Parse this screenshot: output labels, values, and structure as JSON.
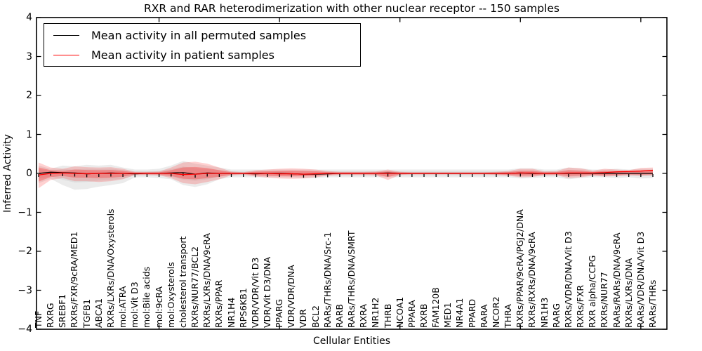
{
  "figure": {
    "title": "RXR and RAR heterodimerization with other nuclear receptor -- 150 samples",
    "x_axis_label": "Cellular Entities",
    "y_axis_label": "Inferred Activity",
    "legend": [
      {
        "label": "Mean activity in all permuted samples",
        "color": "#000000"
      },
      {
        "label": "Mean activity in patient samples",
        "color": "#ff0000"
      }
    ]
  },
  "chart_data": {
    "type": "line",
    "title": "RXR and RAR heterodimerization with other nuclear receptor -- 150 samples",
    "xlabel": "Cellular Entities",
    "ylabel": "Inferred Activity",
    "ylim": [
      -4,
      4
    ],
    "yticks": [
      -4,
      -3,
      -2,
      -1,
      0,
      1,
      2,
      3,
      4
    ],
    "grid": false,
    "legend_position": "upper left",
    "categories": [
      "TNF",
      "RXRG",
      "SREBF1",
      "RXRs/FXR/9cRA/MED1",
      "TGFB1",
      "ABCA1",
      "RXRs/LXRs/DNA/Oxysterols",
      "mol:ATRA",
      "mol:Vit D3",
      "mol:Bile acids",
      "mol:9cRA",
      "mol:Oxysterols",
      "cholesterol transport",
      "RXRs/NUR77/BCL2",
      "RXRs/LXRs/DNA/9cRA",
      "RXRs/PPAR",
      "NR1H4",
      "RPS6KB1",
      "VDR/VDR/Vit D3",
      "VDR/Vit D3/DNA",
      "PPARG",
      "VDR/VDR/DNA",
      "VDR",
      "BCL2",
      "RARs/THRs/DNA/Src-1",
      "RARB",
      "RARs/THRs/DNA/SMRT",
      "RXRA",
      "NR1H2",
      "THRB",
      "NCOA1",
      "PPARA",
      "RXRB",
      "FAM120B",
      "MED1",
      "NR4A1",
      "PPARD",
      "RARA",
      "NCOR2",
      "THRA",
      "RXRs/PPAR/9cRA/PGJ2/DNA",
      "RXRs/RXRs/DNA/9cRA",
      "NR1H3",
      "RARG",
      "RXRs/VDR/DNA/Vit D3",
      "RXRs/FXR",
      "RXR alpha/CCPG",
      "RXRs/NUR77",
      "RARs/RARs/DNA/9cRA",
      "RXRs/LXRs/DNA",
      "RARs/VDR/DNA/Vit D3",
      "RARs/THRs"
    ],
    "series": [
      {
        "name": "Mean activity in all permuted samples",
        "color": "#000000",
        "values": [
          0.0,
          0.03,
          0.02,
          0.01,
          -0.01,
          0.0,
          0.01,
          0.0,
          -0.01,
          0.0,
          0.0,
          0.01,
          0.02,
          -0.02,
          0.01,
          0.0,
          0.0,
          0.0,
          -0.01,
          0.0,
          0.0,
          -0.01,
          -0.02,
          -0.02,
          -0.01,
          0.0,
          0.0,
          0.0,
          0.0,
          0.01,
          0.0,
          0.0,
          0.0,
          0.0,
          0.0,
          0.0,
          0.0,
          0.0,
          0.0,
          0.0,
          0.01,
          0.0,
          0.0,
          0.0,
          0.0,
          0.0,
          0.0,
          0.0,
          0.0,
          0.0,
          0.0,
          0.0
        ]
      },
      {
        "name": "Mean activity in patient samples",
        "color": "#ff0000",
        "values": [
          -0.04,
          0.0,
          0.01,
          0.0,
          -0.01,
          0.0,
          0.0,
          0.0,
          0.0,
          0.0,
          0.0,
          0.0,
          -0.03,
          -0.02,
          0.0,
          0.0,
          0.0,
          0.0,
          0.0,
          0.0,
          -0.01,
          -0.01,
          -0.02,
          -0.01,
          0.0,
          0.0,
          0.0,
          0.0,
          0.0,
          0.0,
          0.0,
          0.0,
          0.0,
          0.0,
          0.0,
          0.0,
          0.0,
          0.0,
          0.0,
          0.0,
          0.01,
          0.01,
          0.0,
          0.0,
          0.01,
          0.01,
          0.01,
          0.02,
          0.04,
          0.05,
          0.06,
          0.08
        ]
      }
    ],
    "bands": [
      {
        "name": "permuted-samples-spread",
        "color": "#999999",
        "upper": [
          0.2,
          0.12,
          0.2,
          0.18,
          0.22,
          0.2,
          0.22,
          0.15,
          0.1,
          0.1,
          0.12,
          0.2,
          0.32,
          0.25,
          0.2,
          0.15,
          0.1,
          0.1,
          0.1,
          0.1,
          0.1,
          0.1,
          0.1,
          0.1,
          0.1,
          0.1,
          0.1,
          0.1,
          0.1,
          0.1,
          0.1,
          0.1,
          0.1,
          0.1,
          0.1,
          0.1,
          0.1,
          0.1,
          0.1,
          0.1,
          0.13,
          0.13,
          0.1,
          0.1,
          0.15,
          0.13,
          0.1,
          0.1,
          0.12,
          0.1,
          0.12,
          0.12
        ],
        "lower": [
          -0.25,
          -0.14,
          -0.3,
          -0.42,
          -0.4,
          -0.34,
          -0.3,
          -0.25,
          -0.1,
          -0.1,
          -0.12,
          -0.15,
          -0.3,
          -0.35,
          -0.28,
          -0.15,
          -0.1,
          -0.1,
          -0.1,
          -0.1,
          -0.1,
          -0.1,
          -0.12,
          -0.12,
          -0.1,
          -0.1,
          -0.1,
          -0.1,
          -0.1,
          -0.1,
          -0.1,
          -0.1,
          -0.1,
          -0.1,
          -0.1,
          -0.1,
          -0.1,
          -0.1,
          -0.1,
          -0.1,
          -0.13,
          -0.12,
          -0.1,
          -0.1,
          -0.15,
          -0.12,
          -0.1,
          -0.1,
          -0.12,
          -0.1,
          -0.13,
          -0.12
        ]
      },
      {
        "name": "patient-samples-spread",
        "color": "#ff0000",
        "upper": [
          0.28,
          0.15,
          0.12,
          0.18,
          0.16,
          0.15,
          0.16,
          0.12,
          0.04,
          0.04,
          0.05,
          0.15,
          0.28,
          0.3,
          0.25,
          0.15,
          0.05,
          0.03,
          0.08,
          0.1,
          0.12,
          0.13,
          0.12,
          0.1,
          0.06,
          0.04,
          0.04,
          0.04,
          0.05,
          0.1,
          0.04,
          0.03,
          0.03,
          0.03,
          0.03,
          0.03,
          0.03,
          0.03,
          0.04,
          0.06,
          0.12,
          0.12,
          0.05,
          0.06,
          0.15,
          0.13,
          0.07,
          0.12,
          0.1,
          0.08,
          0.14,
          0.15
        ],
        "lower": [
          -0.38,
          -0.17,
          -0.12,
          -0.2,
          -0.2,
          -0.22,
          -0.2,
          -0.15,
          -0.04,
          -0.04,
          -0.05,
          -0.12,
          -0.25,
          -0.28,
          -0.22,
          -0.15,
          -0.05,
          -0.03,
          -0.08,
          -0.11,
          -0.13,
          -0.14,
          -0.13,
          -0.1,
          -0.06,
          -0.04,
          -0.04,
          -0.04,
          -0.05,
          -0.17,
          -0.04,
          -0.03,
          -0.03,
          -0.03,
          -0.03,
          -0.03,
          -0.03,
          -0.03,
          -0.04,
          -0.06,
          -0.1,
          -0.09,
          -0.05,
          -0.05,
          -0.12,
          -0.1,
          -0.06,
          -0.08,
          -0.07,
          -0.05,
          -0.06,
          -0.05
        ]
      }
    ]
  }
}
